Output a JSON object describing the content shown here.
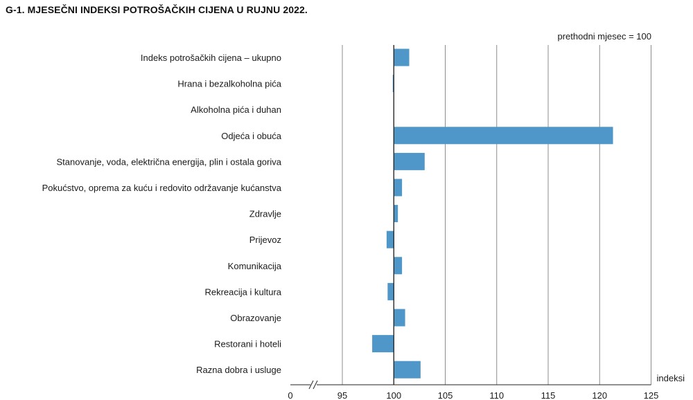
{
  "title": "G-1.  MJESEČNI INDEKSI POTROŠAČKIH CIJENA U RUJNU 2022.",
  "chart_data": {
    "type": "bar",
    "orientation": "horizontal",
    "title": "G-1.  MJESEČNI INDEKSI POTROŠAČKIH CIJENA U RUJNU 2022.",
    "note": "prethodni mjesec = 100",
    "xlabel": "indeksi",
    "baseline": 100,
    "xlim": [
      90,
      125
    ],
    "axis_break": true,
    "x_ticks": [
      0,
      95,
      100,
      105,
      110,
      115,
      120,
      125
    ],
    "grid": "vertical",
    "bar_color": "#4f97c8",
    "categories": [
      "Indeks potrošačkih cijena – ukupno",
      "Hrana i bezalkoholna pića",
      "Alkoholna pića i duhan",
      "Odjeća i obuća",
      "Stanovanje, voda, električna energija, plin i ostala goriva",
      "Pokućstvo, oprema za kuću i redovito održavanje kućanstva",
      "Zdravlje",
      "Prijevoz",
      "Komunikacija",
      "Rekreacija i kultura",
      "Obrazovanje",
      "Restorani i hoteli",
      "Razna dobra i usluge"
    ],
    "values": [
      101.5,
      99.9,
      100.0,
      121.3,
      103.0,
      100.8,
      100.4,
      99.3,
      100.8,
      99.4,
      101.1,
      97.9,
      102.6
    ]
  }
}
